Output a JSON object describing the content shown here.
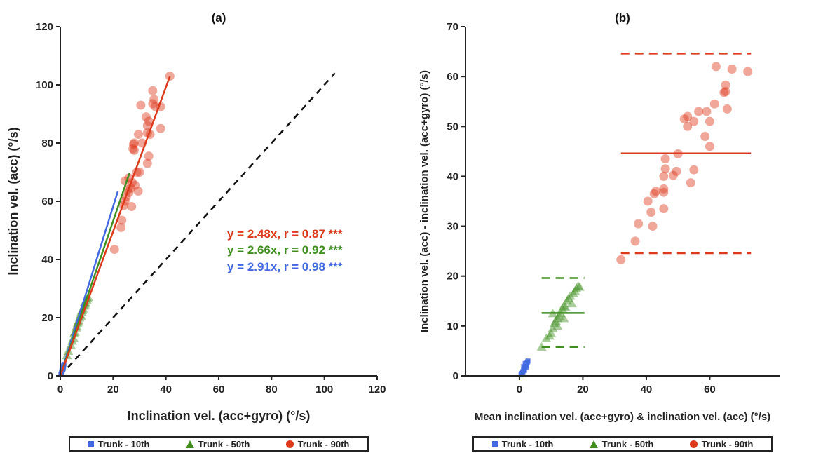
{
  "colors": {
    "p10": "#4169e1",
    "p50": "#3f8f1f",
    "p90": "#dd3a1c",
    "dash": "#111111"
  },
  "legend": [
    {
      "label": "Trunk - 10th",
      "symbol": "square",
      "color_key": "p10"
    },
    {
      "label": "Trunk - 50th",
      "symbol": "triangle",
      "color_key": "p50"
    },
    {
      "label": "Trunk - 90th",
      "symbol": "circle",
      "color_key": "p90"
    }
  ],
  "chart_data": [
    {
      "type": "scatter",
      "title": "(a)",
      "xlabel": "Inclination vel. (acc+gyro) (°/s)",
      "ylabel": "Inclination vel. (acc) (°/s)",
      "xlim": [
        0,
        120
      ],
      "ylim": [
        0,
        120
      ],
      "xticks": [
        0,
        20,
        40,
        60,
        80,
        100,
        120
      ],
      "yticks": [
        0,
        20,
        40,
        60,
        80,
        100,
        120
      ],
      "identity_line": {
        "style": "dashed",
        "x": [
          0,
          104
        ],
        "y": [
          0,
          104
        ]
      },
      "annotations": [
        {
          "text": "y = 2.48x, r = 0.87 ***",
          "color_key": "p90"
        },
        {
          "text": "y = 2.66x, r = 0.92 ***",
          "color_key": "p50"
        },
        {
          "text": "y = 2.91x, r = 0.98 ***",
          "color_key": "p10"
        }
      ],
      "series": [
        {
          "name": "Trunk - 10th",
          "marker": "square",
          "color_key": "p10",
          "fit": {
            "slope": 2.91,
            "x_range": [
              0,
              21.8
            ]
          },
          "points": [
            [
              0.3,
              0.6
            ],
            [
              0.5,
              1.2
            ],
            [
              0.6,
              1.8
            ],
            [
              0.8,
              2.1
            ],
            [
              0.9,
              2.6
            ],
            [
              1.0,
              3.0
            ],
            [
              1.1,
              2.4
            ],
            [
              1.2,
              3.3
            ],
            [
              1.3,
              3.6
            ],
            [
              0.4,
              0.9
            ],
            [
              0.7,
              1.5
            ],
            [
              1.0,
              2.8
            ],
            [
              1.4,
              4.0
            ],
            [
              0.2,
              0.5
            ],
            [
              0.9,
              2.0
            ],
            [
              1.2,
              2.9
            ]
          ]
        },
        {
          "name": "Trunk - 50th",
          "marker": "triangle",
          "color_key": "p50",
          "fit": {
            "slope": 2.66,
            "x_range": [
              0,
              26.2
            ]
          },
          "points": [
            [
              2.5,
              7
            ],
            [
              3,
              8.5
            ],
            [
              4,
              10.5
            ],
            [
              4.5,
              12
            ],
            [
              5,
              13
            ],
            [
              5.2,
              14.5
            ],
            [
              5.5,
              15
            ],
            [
              6,
              16.5
            ],
            [
              6.2,
              17
            ],
            [
              6.5,
              18
            ],
            [
              7,
              19
            ],
            [
              7.3,
              20
            ],
            [
              7.6,
              21
            ],
            [
              8,
              22
            ],
            [
              8.3,
              22.5
            ],
            [
              8.6,
              23
            ],
            [
              9,
              24
            ],
            [
              9.3,
              24.5
            ],
            [
              9.6,
              25
            ],
            [
              10,
              26
            ],
            [
              10.3,
              26.5
            ],
            [
              10.6,
              27
            ],
            [
              6.8,
              18.5
            ],
            [
              7.8,
              20.5
            ],
            [
              9.2,
              25.2
            ]
          ]
        },
        {
          "name": "Trunk - 90th",
          "marker": "circle",
          "color_key": "p90",
          "fit": {
            "slope": 2.48,
            "x_range": [
              0,
              41.5
            ]
          },
          "points": [
            [
              20.5,
              43.5
            ],
            [
              23,
              51
            ],
            [
              23.3,
              53.5
            ],
            [
              24,
              58.5
            ],
            [
              24.5,
              60
            ],
            [
              25,
              61.5
            ],
            [
              25.5,
              64
            ],
            [
              24.5,
              67
            ],
            [
              26,
              68
            ],
            [
              26.7,
              64.5
            ],
            [
              27,
              58.2
            ],
            [
              27.2,
              66.5
            ],
            [
              27.5,
              78
            ],
            [
              27.7,
              79.5
            ],
            [
              28,
              77.5
            ],
            [
              28,
              80
            ],
            [
              28.3,
              65.5
            ],
            [
              29,
              70
            ],
            [
              29.5,
              63.5
            ],
            [
              29.6,
              83
            ],
            [
              30,
              70
            ],
            [
              30.5,
              93
            ],
            [
              32.5,
              89
            ],
            [
              33,
              83.5
            ],
            [
              33,
              86
            ],
            [
              33,
              73
            ],
            [
              33.5,
              75.5
            ],
            [
              33.5,
              87.5
            ],
            [
              34,
              83
            ],
            [
              35,
              98
            ],
            [
              35,
              93.5
            ],
            [
              35.5,
              95
            ],
            [
              36,
              92.5
            ],
            [
              38,
              92.5
            ],
            [
              38,
              85
            ],
            [
              41.5,
              103
            ],
            [
              31,
              80
            ],
            [
              26,
              63
            ]
          ]
        }
      ]
    },
    {
      "type": "scatter",
      "title": "(b)",
      "xlabel": "Mean inclination vel. (acc+gyro) & inclination vel. (acc) (°/s)",
      "ylabel": "Inclination vel. (acc) - inclination vel. (acc+gyro) (°/s)",
      "xlim": [
        -17,
        82
      ],
      "ylim": [
        0,
        70
      ],
      "xticks": [
        0,
        20,
        40,
        60
      ],
      "yticks": [
        0,
        10,
        20,
        30,
        40,
        50,
        60,
        70
      ],
      "bland_altman": [
        {
          "color_key": "p50",
          "mean": 12.6,
          "upper": 19.6,
          "lower": 5.8,
          "x_range": [
            7,
            20.5
          ]
        },
        {
          "color_key": "p90",
          "mean": 44.6,
          "upper": 64.6,
          "lower": 24.6,
          "x_range": [
            32,
            73
          ]
        }
      ],
      "series": [
        {
          "name": "Trunk - 10th",
          "marker": "square",
          "color_key": "p10",
          "points": [
            [
              0.5,
              0.2
            ],
            [
              0.8,
              0.5
            ],
            [
              1.0,
              0.8
            ],
            [
              1.2,
              1.0
            ],
            [
              1.4,
              1.2
            ],
            [
              1.5,
              1.5
            ],
            [
              1.7,
              1.7
            ],
            [
              1.9,
              2.0
            ],
            [
              2.0,
              2.2
            ],
            [
              2.2,
              2.4
            ],
            [
              2.4,
              2.6
            ],
            [
              2.6,
              2.8
            ],
            [
              1.1,
              0.6
            ],
            [
              1.6,
              1.1
            ],
            [
              2.1,
              1.6
            ],
            [
              0.6,
              0.4
            ],
            [
              1.3,
              1.9
            ],
            [
              2.3,
              2.0
            ],
            [
              2.7,
              3.0
            ],
            [
              1.8,
              2.5
            ]
          ]
        },
        {
          "name": "Trunk - 50th",
          "marker": "triangle",
          "color_key": "p50",
          "points": [
            [
              7,
              5.8
            ],
            [
              8.5,
              7.5
            ],
            [
              9.5,
              8
            ],
            [
              10,
              8.5
            ],
            [
              10.5,
              9.5
            ],
            [
              11,
              10.5
            ],
            [
              11.5,
              11
            ],
            [
              12,
              11.5
            ],
            [
              12.5,
              12
            ],
            [
              13,
              12.5
            ],
            [
              13.5,
              13.5
            ],
            [
              14,
              14
            ],
            [
              14.5,
              13.8
            ],
            [
              15,
              15
            ],
            [
              15.5,
              15.5
            ],
            [
              16,
              16
            ],
            [
              17,
              16.5
            ],
            [
              17.5,
              17
            ],
            [
              18,
              17.5
            ],
            [
              18.5,
              18
            ],
            [
              19,
              17.8
            ],
            [
              12,
              10
            ],
            [
              14,
              11.5
            ],
            [
              16.5,
              14.5
            ],
            [
              10.5,
              12.5
            ]
          ]
        },
        {
          "name": "Trunk - 90th",
          "marker": "circle",
          "color_key": "p90",
          "points": [
            [
              32,
              23.3
            ],
            [
              36.5,
              27
            ],
            [
              37.5,
              30.5
            ],
            [
              40.5,
              35
            ],
            [
              41.5,
              32.8
            ],
            [
              42,
              30
            ],
            [
              42.5,
              36.5
            ],
            [
              43,
              37
            ],
            [
              45.5,
              37.5
            ],
            [
              45.5,
              36.8
            ],
            [
              45.5,
              33.5
            ],
            [
              45.5,
              40
            ],
            [
              46,
              41.5
            ],
            [
              46,
              43.5
            ],
            [
              48.5,
              40.2
            ],
            [
              49.5,
              41
            ],
            [
              50,
              44.5
            ],
            [
              52,
              51.5
            ],
            [
              53,
              50
            ],
            [
              53,
              52
            ],
            [
              54,
              38.7
            ],
            [
              55,
              41.3
            ],
            [
              55,
              51
            ],
            [
              56.5,
              53
            ],
            [
              58.5,
              48
            ],
            [
              59,
              53
            ],
            [
              60,
              46
            ],
            [
              60,
              51
            ],
            [
              61.5,
              54.5
            ],
            [
              62,
              62
            ],
            [
              64.5,
              56.8
            ],
            [
              65,
              58.3
            ],
            [
              65,
              57
            ],
            [
              65.5,
              53.5
            ],
            [
              67,
              61.5
            ],
            [
              72,
              61
            ]
          ]
        }
      ]
    }
  ]
}
